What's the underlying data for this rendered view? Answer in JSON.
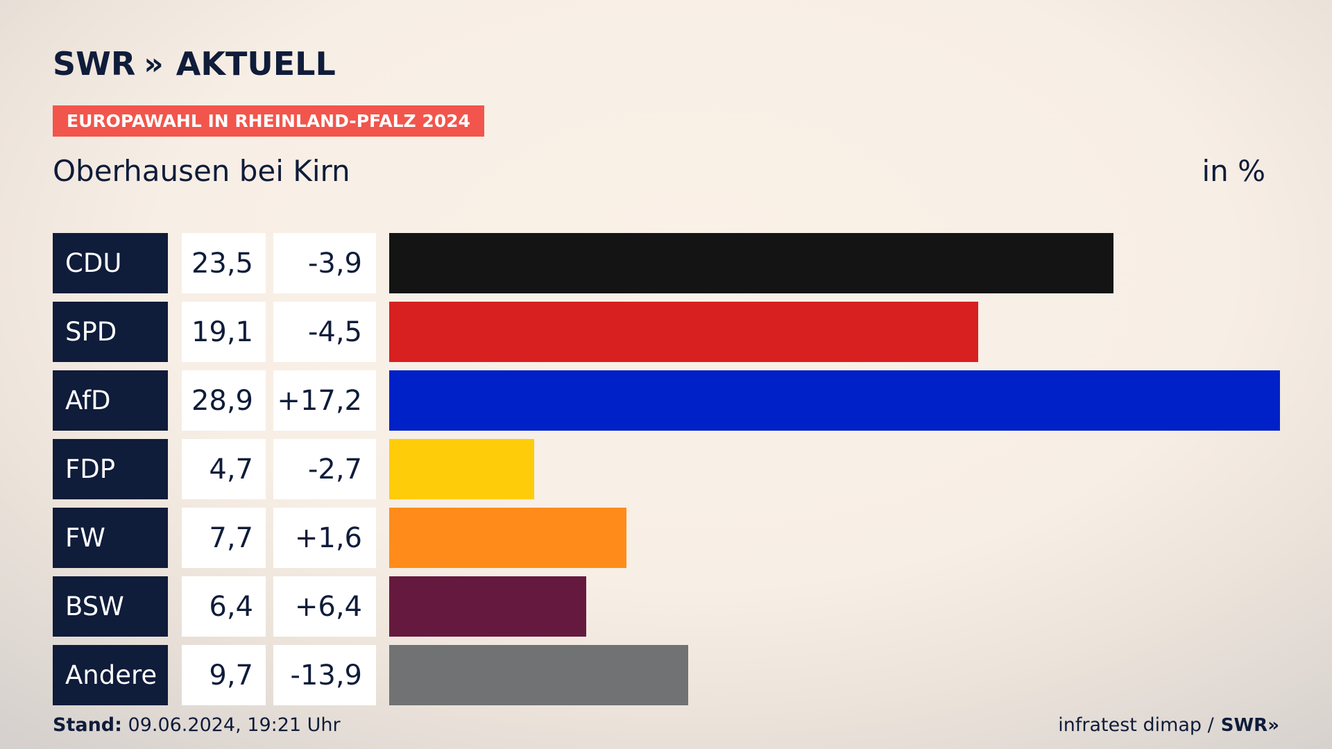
{
  "header": {
    "logo_text": "SWR",
    "logo_chevrons": "»",
    "logo_product": "AKTUELL",
    "badge": "EUROPAWAHL IN RHEINLAND-PFALZ 2024",
    "place": "Oberhausen bei Kirn",
    "unit": "in %"
  },
  "chart_data": {
    "type": "bar",
    "orientation": "horizontal",
    "categories": [
      "CDU",
      "SPD",
      "AfD",
      "FDP",
      "FW",
      "BSW",
      "Andere"
    ],
    "values": [
      23.5,
      19.1,
      28.9,
      4.7,
      7.7,
      6.4,
      9.7
    ],
    "value_labels": [
      "23,5",
      "19,1",
      "28,9",
      "4,7",
      "7,7",
      "6,4",
      "9,7"
    ],
    "changes": [
      "-3,9",
      "-4,5",
      "+17,2",
      "-2,7",
      "+1,6",
      "+6,4",
      "-13,9"
    ],
    "colors": [
      "#141414",
      "#d7201f",
      "#0020c8",
      "#ffcc0a",
      "#ff8c1a",
      "#66193f",
      "#707273"
    ],
    "title": "Oberhausen bei Kirn",
    "unit": "in %",
    "grid": false
  },
  "footer": {
    "stand_label": "Stand:",
    "stand_value": "09.06.2024, 19:21 Uhr",
    "source": "infratest dimap /",
    "source_logo": "SWR»"
  }
}
